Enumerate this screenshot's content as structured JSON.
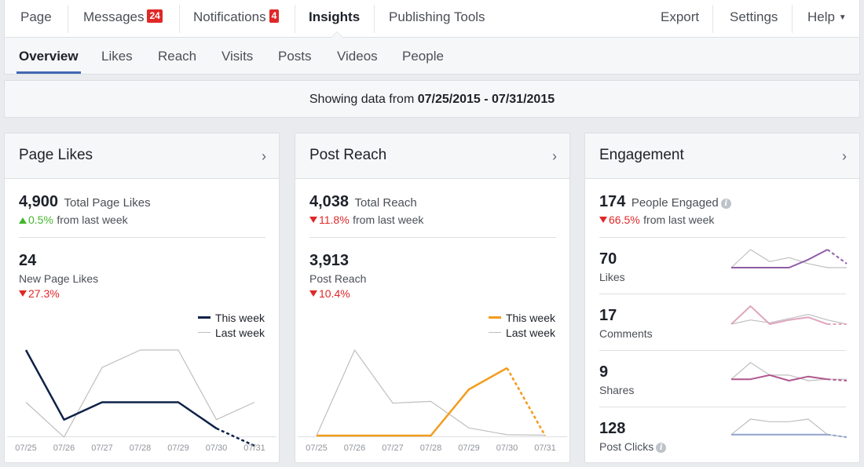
{
  "topnav": {
    "page": "Page",
    "messages": "Messages",
    "messages_badge": "24",
    "notifications": "Notifications",
    "notifications_badge": "4",
    "insights": "Insights",
    "publishing_tools": "Publishing Tools",
    "export": "Export",
    "settings": "Settings",
    "help": "Help"
  },
  "subnav": [
    "Overview",
    "Likes",
    "Reach",
    "Visits",
    "Posts",
    "Videos",
    "People"
  ],
  "daterange": {
    "prefix": "Showing data from ",
    "range": "07/25/2015 - 07/31/2015"
  },
  "cards": {
    "page_likes": {
      "title": "Page Likes",
      "total_value": "4,900",
      "total_label": "Total Page Likes",
      "total_change": "0.5%",
      "total_change_suffix": "from last week",
      "new_value": "24",
      "new_label": "New Page Likes",
      "new_change": "27.3%",
      "legend_this": "This week",
      "legend_last": "Last week"
    },
    "post_reach": {
      "title": "Post Reach",
      "total_value": "4,038",
      "total_label": "Total Reach",
      "total_change": "11.8%",
      "total_change_suffix": "from last week",
      "sub_value": "3,913",
      "sub_label": "Post Reach",
      "sub_change": "10.4%",
      "legend_this": "This week",
      "legend_last": "Last week"
    },
    "engagement": {
      "title": "Engagement",
      "total_value": "174",
      "total_label": "People Engaged",
      "total_change": "66.5%",
      "total_change_suffix": "from last week",
      "rows": [
        {
          "value": "70",
          "label": "Likes"
        },
        {
          "value": "17",
          "label": "Comments"
        },
        {
          "value": "9",
          "label": "Shares"
        },
        {
          "value": "128",
          "label": "Post Clicks"
        }
      ]
    }
  },
  "colors": {
    "likes_this_week": "#0e2249",
    "reach_this_week": "#f39c1e",
    "last_week": "#bfbfbf",
    "eng_likes": "#8e5ca6",
    "eng_comments": "#e0a6bf",
    "eng_shares": "#b0578f",
    "eng_clicks": "#8fa3cc"
  },
  "chart_data": [
    {
      "type": "line",
      "title": "",
      "x": [
        "07/25",
        "07/26",
        "07/27",
        "07/28",
        "07/29",
        "07/30",
        "07/31"
      ],
      "series": [
        {
          "name": "This week",
          "values": [
            10,
            2,
            4,
            4,
            4,
            1,
            -1
          ]
        },
        {
          "name": "Last week",
          "values": [
            4,
            0,
            8,
            10,
            10,
            2,
            4
          ]
        }
      ],
      "ylim": [
        -1,
        10
      ]
    },
    {
      "type": "line",
      "title": "",
      "x": [
        "07/25",
        "07/26",
        "07/27",
        "07/28",
        "07/29",
        "07/30",
        "07/31"
      ],
      "series": [
        {
          "name": "This week",
          "values": [
            0,
            0,
            0,
            0,
            540,
            790,
            0
          ]
        },
        {
          "name": "Last week",
          "values": [
            0,
            1000,
            380,
            400,
            90,
            10,
            5
          ]
        }
      ],
      "ylim": [
        0,
        1000
      ]
    },
    {
      "type": "line",
      "title": "",
      "x": [
        "07/25",
        "07/26",
        "07/27",
        "07/28",
        "07/29",
        "07/30",
        "07/31"
      ],
      "series": [
        {
          "values": [
            10,
            10,
            10,
            10,
            14,
            19,
            12
          ]
        },
        {
          "values": [
            10,
            19,
            13,
            15,
            12,
            10,
            10
          ]
        }
      ]
    },
    {
      "type": "line",
      "title": "",
      "x": [
        "07/25",
        "07/26",
        "07/27",
        "07/28",
        "07/29",
        "07/30",
        "07/31"
      ],
      "series": [
        {
          "values": [
            3,
            16,
            3,
            6,
            8,
            3,
            3
          ]
        },
        {
          "values": [
            3,
            6,
            4,
            7,
            10,
            6,
            3
          ]
        }
      ]
    },
    {
      "type": "line",
      "title": "",
      "x": [
        "07/25",
        "07/26",
        "07/27",
        "07/28",
        "07/29",
        "07/30",
        "07/31"
      ],
      "series": [
        {
          "values": [
            3,
            3,
            6,
            2,
            5,
            3,
            2
          ]
        },
        {
          "values": [
            3,
            15,
            6,
            6,
            2,
            3,
            3
          ]
        }
      ]
    },
    {
      "type": "line",
      "title": "",
      "x": [
        "07/25",
        "07/26",
        "07/27",
        "07/28",
        "07/29",
        "07/30",
        "07/31"
      ],
      "series": [
        {
          "values": [
            2,
            2,
            2,
            2,
            2,
            2,
            1
          ]
        },
        {
          "values": [
            2,
            8,
            7,
            7,
            8,
            2,
            1
          ]
        }
      ]
    }
  ]
}
